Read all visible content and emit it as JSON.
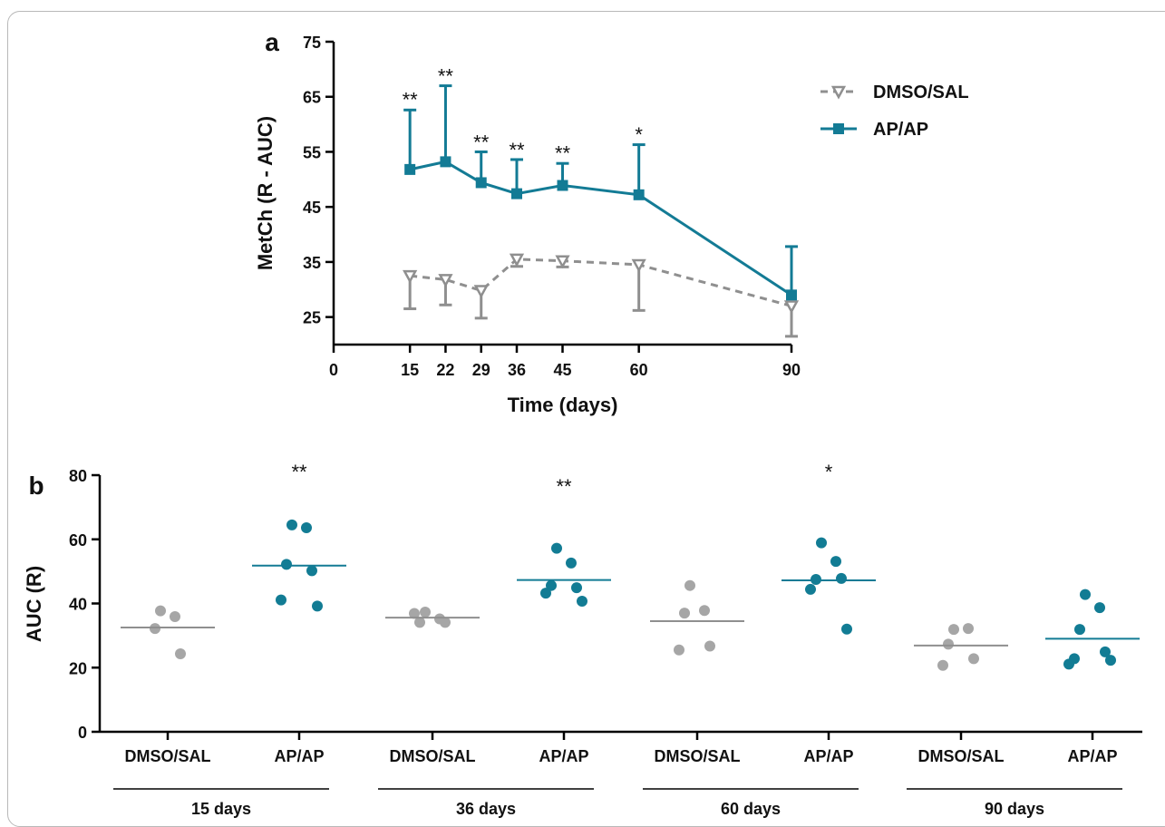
{
  "colors": {
    "dmso": "#8f8f8f",
    "ap": "#137b95",
    "dmso_points": "#a6a6a6",
    "ap_points": "#127c94"
  },
  "chart_data": [
    {
      "panel": "a",
      "type": "line",
      "xlabel": "Time (days)",
      "ylabel": "MetCh (R - AUC)",
      "xlim": [
        0,
        90
      ],
      "ylim": [
        20,
        75
      ],
      "x_ticks": [
        0,
        15,
        22,
        29,
        36,
        45,
        60,
        90
      ],
      "y_ticks": [
        25,
        35,
        45,
        55,
        65,
        75
      ],
      "legend": "top-right",
      "series": [
        {
          "name": "DMSO/SAL",
          "marker": "open-triangle-down",
          "style": "dashed",
          "x": [
            15,
            22,
            29,
            36,
            45,
            60,
            90
          ],
          "y": [
            32.5,
            31.8,
            29.8,
            35.5,
            35.2,
            34.5,
            27
          ],
          "err_low": [
            26.5,
            27.2,
            24.8,
            34.2,
            34.1,
            26.2,
            21.5
          ],
          "err_high": [
            null,
            null,
            null,
            null,
            null,
            null,
            null
          ]
        },
        {
          "name": "AP/AP",
          "marker": "filled-square",
          "style": "solid",
          "x": [
            15,
            22,
            29,
            36,
            45,
            60,
            90
          ],
          "y": [
            51.8,
            53.2,
            49.4,
            47.4,
            48.9,
            47.2,
            29
          ],
          "err_high": [
            62.6,
            67,
            55,
            53.6,
            52.9,
            56.3,
            37.8
          ],
          "err_low": [
            null,
            null,
            null,
            null,
            null,
            null,
            null
          ]
        }
      ],
      "annotations": [
        {
          "x": 15,
          "text": "**",
          "y": 65.5
        },
        {
          "x": 22,
          "text": "**",
          "y": 69.8
        },
        {
          "x": 29,
          "text": "**",
          "y": 57.8
        },
        {
          "x": 36,
          "text": "**",
          "y": 56.4
        },
        {
          "x": 45,
          "text": "**",
          "y": 55.8
        },
        {
          "x": 60,
          "text": "*",
          "y": 59.2
        }
      ]
    },
    {
      "panel": "b",
      "type": "scatter",
      "ylabel": "AUC (R)",
      "ylim": [
        0,
        80
      ],
      "y_ticks": [
        0,
        20,
        40,
        60,
        80
      ],
      "categories": [
        "DMSO/SAL",
        "AP/AP",
        "DMSO/SAL",
        "AP/AP",
        "DMSO/SAL",
        "AP/AP",
        "DMSO/SAL",
        "AP/AP"
      ],
      "groups": [
        {
          "label": "15 days",
          "span": [
            0,
            1
          ]
        },
        {
          "label": "36 days",
          "span": [
            2,
            3
          ]
        },
        {
          "label": "60 days",
          "span": [
            4,
            5
          ]
        },
        {
          "label": "90 days",
          "span": [
            6,
            7
          ]
        }
      ],
      "columns": [
        {
          "series": "DMSO/SAL",
          "median": 32.5,
          "points": [
            37.7,
            35.9,
            32.2,
            24.3
          ]
        },
        {
          "series": "AP/AP",
          "median": 51.8,
          "points": [
            64.5,
            63.6,
            52.2,
            50.2,
            41.1,
            39.2
          ],
          "annotation": "**"
        },
        {
          "series": "DMSO/SAL",
          "median": 35.6,
          "points": [
            37.3,
            35.2,
            34.1,
            34.1,
            36.9
          ]
        },
        {
          "series": "AP/AP",
          "median": 47.3,
          "points": [
            57.2,
            52.6,
            45.6,
            44.9,
            43.2,
            40.7
          ],
          "annotation": "**"
        },
        {
          "series": "DMSO/SAL",
          "median": 34.5,
          "points": [
            45.6,
            37.8,
            37.0,
            26.7,
            25.5
          ]
        },
        {
          "series": "AP/AP",
          "median": 47.2,
          "points": [
            58.9,
            53.1,
            47.5,
            47.8,
            44.4,
            32.0
          ],
          "annotation": "*"
        },
        {
          "series": "DMSO/SAL",
          "median": 26.9,
          "points": [
            31.9,
            32.2,
            27.3,
            22.8,
            20.7
          ]
        },
        {
          "series": "AP/AP",
          "median": 29,
          "points": [
            42.8,
            38.7,
            31.9,
            24.9,
            22.8,
            22.3,
            21.1
          ]
        }
      ]
    }
  ]
}
